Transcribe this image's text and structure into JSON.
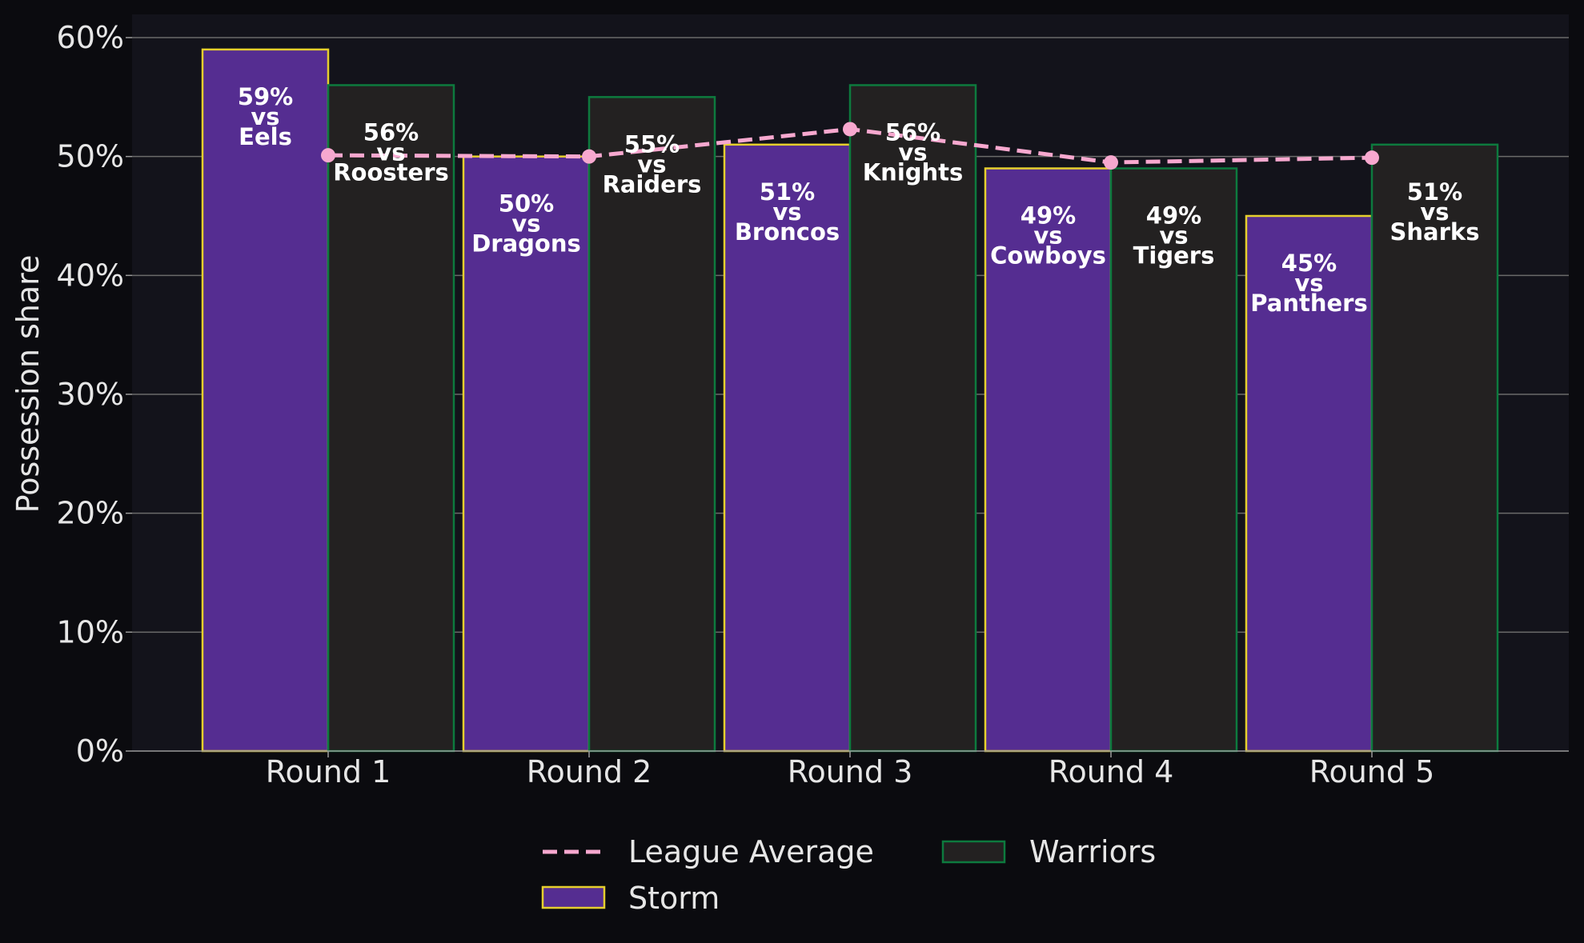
{
  "chart_data": {
    "type": "bar",
    "ylabel": "Possession share",
    "xlabel": "",
    "ylim": [
      0,
      62
    ],
    "yticks": [
      0,
      10,
      20,
      30,
      40,
      50,
      60
    ],
    "ytick_labels": [
      "0%",
      "10%",
      "20%",
      "30%",
      "40%",
      "50%",
      "60%"
    ],
    "grid": "horizontal",
    "legend_position": "bottom-center",
    "categories": [
      "Round 1",
      "Round 2",
      "Round 3",
      "Round 4",
      "Round 5"
    ],
    "series": [
      {
        "name": "Storm",
        "kind": "bar",
        "fill": "#552d91",
        "edge": "#e6cf2e",
        "values": [
          59,
          50,
          51,
          49,
          45
        ],
        "labels": [
          [
            "59%",
            "vs",
            "Eels"
          ],
          [
            "50%",
            "vs",
            "Dragons"
          ],
          [
            "51%",
            "vs",
            "Broncos"
          ],
          [
            "49%",
            "vs",
            "Cowboys"
          ],
          [
            "45%",
            "vs",
            "Panthers"
          ]
        ]
      },
      {
        "name": "Warriors",
        "kind": "bar",
        "fill": "#232121",
        "edge": "#0d7a3e",
        "values": [
          56,
          55,
          56,
          49,
          51
        ],
        "labels": [
          [
            "56%",
            "vs",
            "Roosters"
          ],
          [
            "55%",
            "vs",
            "Raiders"
          ],
          [
            "56%",
            "vs",
            "Knights"
          ],
          [
            "49%",
            "vs",
            "Tigers"
          ],
          [
            "51%",
            "vs",
            "Sharks"
          ]
        ]
      },
      {
        "name": "League Average",
        "kind": "line",
        "style": "dashed",
        "color": "#f7a8cf",
        "values": [
          50.1,
          50.0,
          52.3,
          49.5,
          49.9
        ]
      }
    ],
    "legend": [
      "League Average",
      "Warriors",
      "Storm"
    ]
  },
  "colors": {
    "figure_bg": "#0b0b0f",
    "plot_bg": "#13131b",
    "grid": "#6b6b6b",
    "text": "#e6e6e6"
  }
}
